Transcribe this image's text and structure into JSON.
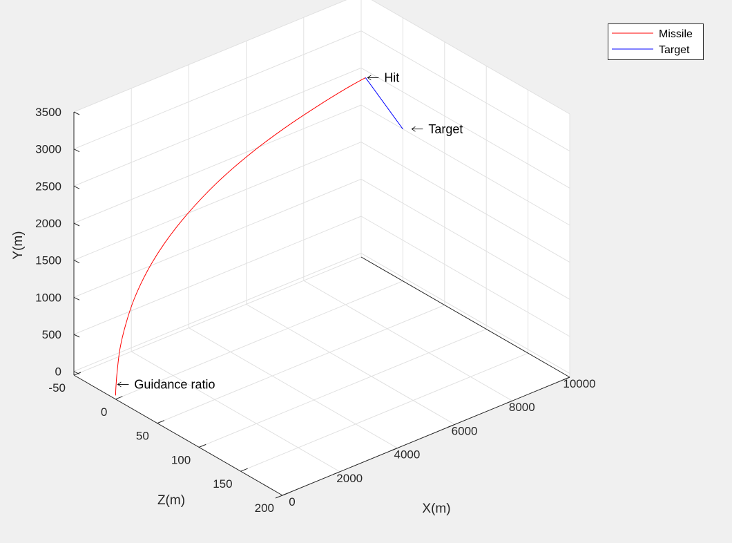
{
  "chart_data": {
    "type": "line",
    "view": "3d",
    "xlabel": "X(m)",
    "ylabel": "Y(m)",
    "zlabel": "Z(m)",
    "xlim": [
      0,
      10000
    ],
    "ylim": [
      -50,
      3500
    ],
    "zlim": [
      -50,
      200
    ],
    "x_ticks": [
      0,
      2000,
      4000,
      6000,
      8000,
      10000
    ],
    "y_ticks": [
      0,
      500,
      1000,
      1500,
      2000,
      2500,
      3000,
      3500
    ],
    "z_ticks": [
      -50,
      0,
      50,
      100,
      150,
      200
    ],
    "grid": true,
    "legend_position": "top-right",
    "series": [
      {
        "name": "Missile",
        "color": "#ff0000",
        "points": [
          [
            0,
            0,
            0
          ],
          [
            10,
            100,
            0
          ],
          [
            50,
            300,
            0
          ],
          [
            150,
            600,
            0
          ],
          [
            350,
            900,
            0
          ],
          [
            650,
            1200,
            0
          ],
          [
            1100,
            1500,
            0
          ],
          [
            1700,
            1780,
            0
          ],
          [
            2500,
            2050,
            0
          ],
          [
            3500,
            2300,
            0
          ],
          [
            4600,
            2500,
            0
          ],
          [
            5800,
            2660,
            0
          ],
          [
            7000,
            2780,
            0
          ],
          [
            8000,
            2860,
            0
          ],
          [
            8700,
            2900,
            0
          ]
        ]
      },
      {
        "name": "Target",
        "color": "#0000ff",
        "points": [
          [
            10000,
            2000,
            0
          ],
          [
            8700,
            2900,
            0
          ]
        ]
      }
    ],
    "annotations": [
      {
        "text": "Guidance ratio",
        "point": [
          0,
          0,
          0
        ]
      },
      {
        "text": "Hit",
        "point": [
          8700,
          2900,
          0
        ]
      },
      {
        "text": "Target",
        "point": [
          10000,
          2000,
          0
        ]
      }
    ]
  }
}
